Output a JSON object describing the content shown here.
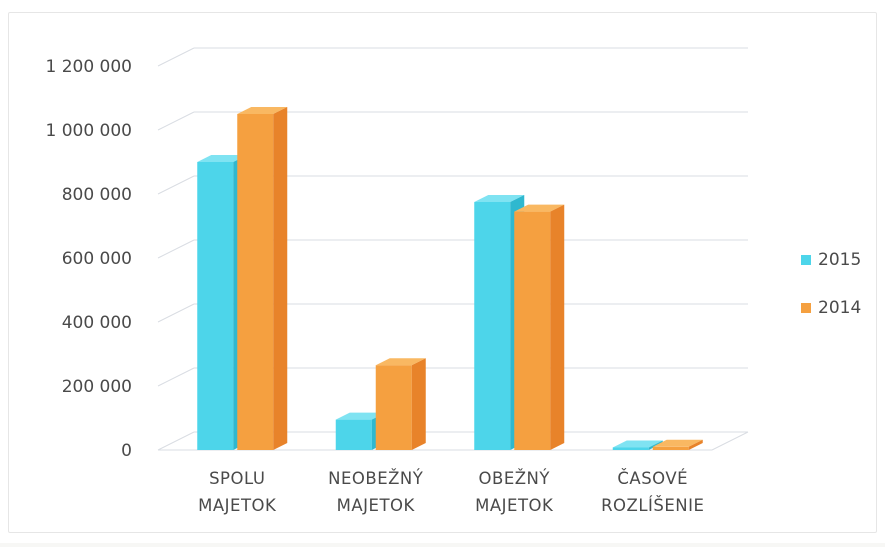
{
  "chart_data": {
    "type": "bar",
    "title": "",
    "xlabel": "",
    "ylabel": "",
    "categories": [
      [
        "SPOLU",
        "MAJETOK"
      ],
      [
        "NEOBEŽNÝ",
        "MAJETOK"
      ],
      [
        "OBEŽNÝ",
        "MAJETOK"
      ],
      [
        "ČASOVÉ",
        "ROZLÍŠENIE"
      ]
    ],
    "series": [
      {
        "name": "2015",
        "values": [
          900000,
          95000,
          775000,
          8000
        ],
        "color": "#4dd5ea",
        "side": "#2fb8cf",
        "top": "#7fe3f2"
      },
      {
        "name": "2014",
        "values": [
          1050000,
          265000,
          745000,
          10000
        ],
        "color": "#f5a040",
        "side": "#e8832a",
        "top": "#f9b862"
      }
    ],
    "ylim": [
      0,
      1200000
    ],
    "yticks": [
      0,
      200000,
      400000,
      600000,
      800000,
      1000000,
      1200000
    ],
    "ytick_labels": [
      "0",
      "200 000",
      "400 000",
      "600 000",
      "800 000",
      "1 000 000",
      "1 200 000"
    ],
    "grid": true,
    "legend_position": "right",
    "projection": "3d-clustered-column"
  }
}
